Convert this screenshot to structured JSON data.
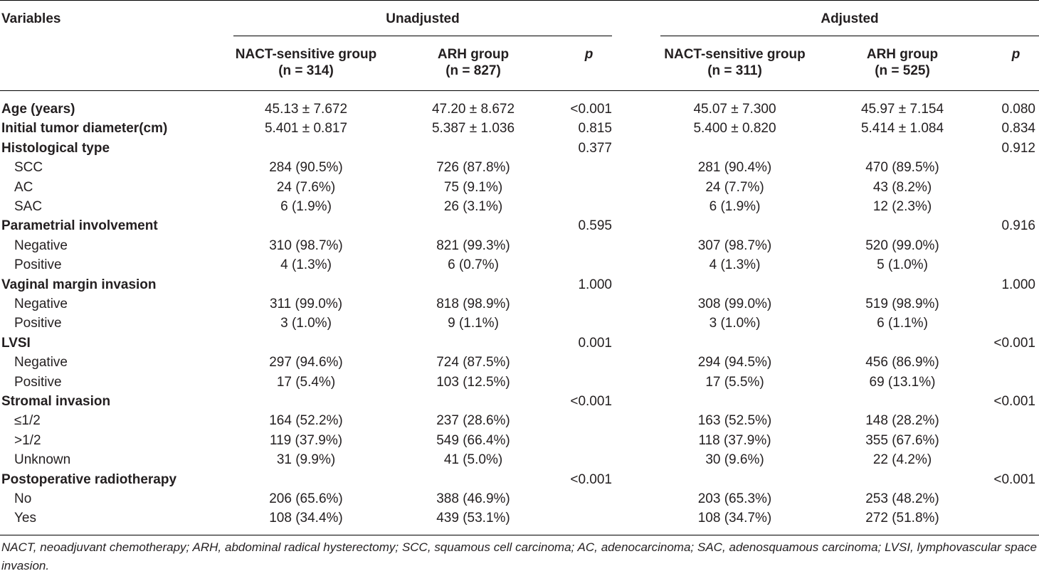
{
  "header": {
    "variables": "Variables",
    "unadjusted": "Unadjusted",
    "adjusted": "Adjusted",
    "columns": [
      {
        "line1": "NACT-sensitive group",
        "line2": "(n = 314)"
      },
      {
        "line1": "ARH group",
        "line2": "(n = 827)"
      },
      {
        "line1": "p",
        "line2": ""
      },
      {
        "line1": "NACT-sensitive group",
        "line2": "(n = 311)"
      },
      {
        "line1": "ARH group",
        "line2": "(n = 525)"
      },
      {
        "line1": "p",
        "line2": ""
      }
    ]
  },
  "rows": [
    {
      "label": "Age (years)",
      "cat": true,
      "v": [
        "45.13 ± 7.672",
        "47.20 ± 8.672",
        "<0.001",
        "45.07 ± 7.300",
        "45.97 ± 7.154",
        "0.080"
      ]
    },
    {
      "label": "Initial tumor diameter(cm)",
      "cat": true,
      "v": [
        "5.401 ± 0.817",
        "5.387 ± 1.036",
        "0.815",
        "5.400 ± 0.820",
        "5.414 ± 1.084",
        "0.834"
      ]
    },
    {
      "label": "Histological type",
      "cat": true,
      "v": [
        "",
        "",
        "0.377",
        "",
        "",
        "0.912"
      ]
    },
    {
      "label": "SCC",
      "cat": false,
      "v": [
        "284 (90.5%)",
        "726 (87.8%)",
        "",
        "281 (90.4%)",
        "470 (89.5%)",
        ""
      ]
    },
    {
      "label": "AC",
      "cat": false,
      "v": [
        "24 (7.6%)",
        "75 (9.1%)",
        "",
        "24 (7.7%)",
        "43 (8.2%)",
        ""
      ]
    },
    {
      "label": "SAC",
      "cat": false,
      "v": [
        "6 (1.9%)",
        "26 (3.1%)",
        "",
        "6 (1.9%)",
        "12 (2.3%)",
        ""
      ]
    },
    {
      "label": "Parametrial involvement",
      "cat": true,
      "v": [
        "",
        "",
        "0.595",
        "",
        "",
        "0.916"
      ]
    },
    {
      "label": "Negative",
      "cat": false,
      "v": [
        "310 (98.7%)",
        "821 (99.3%)",
        "",
        "307 (98.7%)",
        "520 (99.0%)",
        ""
      ]
    },
    {
      "label": "Positive",
      "cat": false,
      "v": [
        "4 (1.3%)",
        "6 (0.7%)",
        "",
        "4 (1.3%)",
        "5 (1.0%)",
        ""
      ]
    },
    {
      "label": "Vaginal margin invasion",
      "cat": true,
      "v": [
        "",
        "",
        "1.000",
        "",
        "",
        "1.000"
      ]
    },
    {
      "label": "Negative",
      "cat": false,
      "v": [
        "311 (99.0%)",
        "818 (98.9%)",
        "",
        "308 (99.0%)",
        "519 (98.9%)",
        ""
      ]
    },
    {
      "label": "Positive",
      "cat": false,
      "v": [
        "3 (1.0%)",
        "9 (1.1%)",
        "",
        "3 (1.0%)",
        "6 (1.1%)",
        ""
      ]
    },
    {
      "label": "LVSI",
      "cat": true,
      "v": [
        "",
        "",
        "0.001",
        "",
        "",
        "<0.001"
      ]
    },
    {
      "label": "Negative",
      "cat": false,
      "v": [
        "297 (94.6%)",
        "724 (87.5%)",
        "",
        "294 (94.5%)",
        "456 (86.9%)",
        ""
      ]
    },
    {
      "label": "Positive",
      "cat": false,
      "v": [
        "17 (5.4%)",
        "103 (12.5%)",
        "",
        "17 (5.5%)",
        "69 (13.1%)",
        ""
      ]
    },
    {
      "label": "Stromal invasion",
      "cat": true,
      "v": [
        "",
        "",
        "<0.001",
        "",
        "",
        "<0.001"
      ]
    },
    {
      "label": "≤1/2",
      "cat": false,
      "v": [
        "164 (52.2%)",
        "237 (28.6%)",
        "",
        "163 (52.5%)",
        "148 (28.2%)",
        ""
      ]
    },
    {
      "label": ">1/2",
      "cat": false,
      "v": [
        "119 (37.9%)",
        "549 (66.4%)",
        "",
        "118 (37.9%)",
        "355 (67.6%)",
        ""
      ]
    },
    {
      "label": "Unknown",
      "cat": false,
      "v": [
        "31 (9.9%)",
        "41 (5.0%)",
        "",
        "30 (9.6%)",
        "22 (4.2%)",
        ""
      ]
    },
    {
      "label": "Postoperative radiotherapy",
      "cat": true,
      "v": [
        "",
        "",
        "<0.001",
        "",
        "",
        "<0.001"
      ]
    },
    {
      "label": "No",
      "cat": false,
      "v": [
        "206 (65.6%)",
        "388 (46.9%)",
        "",
        "203 (65.3%)",
        "253 (48.2%)",
        ""
      ]
    },
    {
      "label": "Yes",
      "cat": false,
      "v": [
        "108 (34.4%)",
        "439 (53.1%)",
        "",
        "108 (34.7%)",
        "272 (51.8%)",
        ""
      ]
    }
  ],
  "footnote": "NACT, neoadjuvant chemotherapy; ARH, abdominal radical hysterectomy; SCC, squamous cell carcinoma; AC, adenocarcinoma; SAC, adenosquamous carcinoma; LVSI, lymphovascular space invasion."
}
